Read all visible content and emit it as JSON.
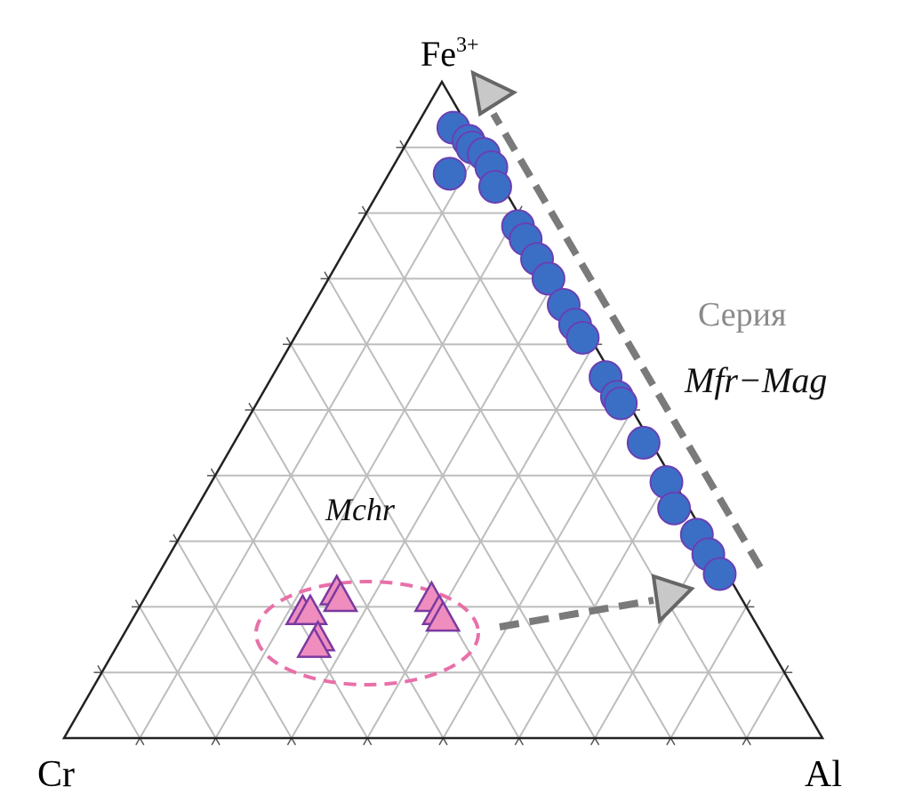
{
  "chart_data": {
    "type": "ternary",
    "top_label": "Fe",
    "top_label_sup": "3+",
    "left_label": "Cr",
    "right_label": "Al",
    "annotations": [
      "Серия",
      "Mfr−Mag",
      "Mchr"
    ],
    "ticks": [
      10,
      20,
      30,
      40,
      50,
      60,
      70,
      80,
      90
    ],
    "grid": true,
    "series": [
      {
        "color": "#3b6fc6",
        "edge": "#6a3fb2",
        "marker": "circle",
        "fe": [
          93,
          91,
          90,
          89,
          86,
          87,
          84,
          78,
          76,
          73,
          70,
          66,
          63,
          61,
          55,
          52,
          51,
          45,
          39,
          35,
          31,
          28,
          25
        ],
        "al": [
          5,
          8,
          9,
          11,
          8,
          13,
          15,
          21,
          23,
          26,
          29,
          33,
          36,
          38,
          44,
          47,
          48,
          54,
          60,
          63,
          68,
          71,
          74
        ],
        "cr": [
          2,
          1,
          1,
          0,
          6,
          0,
          1,
          1,
          1,
          1,
          1,
          1,
          1,
          1,
          1,
          1,
          1,
          1,
          1,
          2,
          1,
          1,
          1
        ]
      },
      {
        "color": "#f08dbf",
        "edge": "#7a3aa0",
        "marker": "triangle",
        "fe": [
          19,
          19,
          22,
          21,
          21,
          19,
          18,
          15,
          14
        ],
        "al": [
          22,
          23,
          25,
          26,
          38,
          40,
          41,
          26,
          26
        ],
        "cr": [
          59,
          58,
          53,
          53,
          41,
          41,
          41,
          59,
          60
        ]
      }
    ]
  }
}
